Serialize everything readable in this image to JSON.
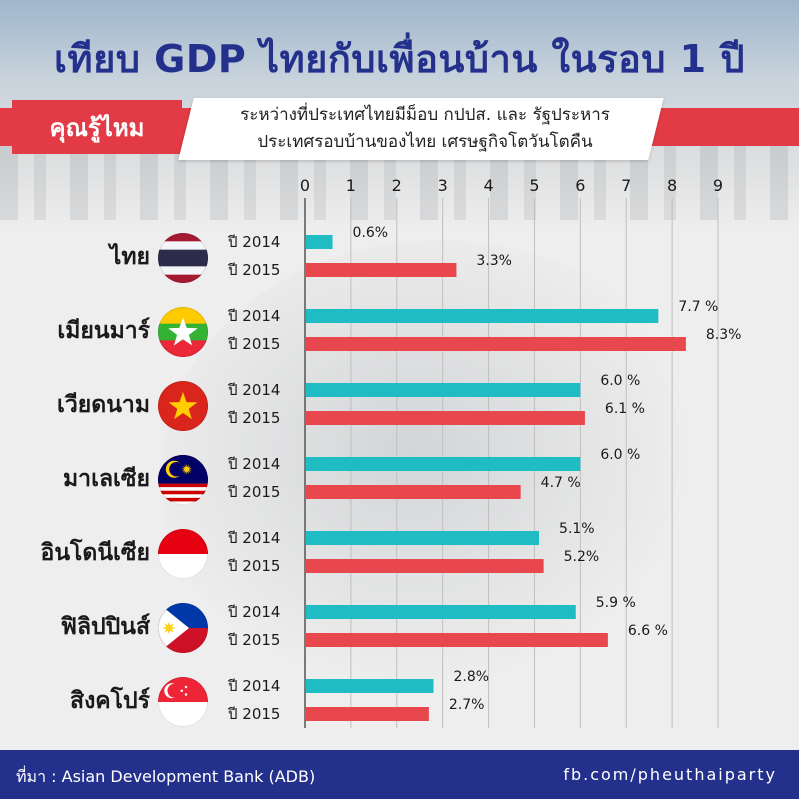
{
  "title": "เทียบ GDP ไทยกับเพื่อนบ้าน ในรอบ 1 ปี",
  "banner": {
    "label": "คุณรู้ไหม",
    "line1": "ระหว่างที่ประเทศไทยมีม็อบ กปปส. และ รัฐประหาร",
    "line2": "ประเทศรอบบ้านของไทย เศรษฐกิจโตวันโตคืน"
  },
  "footer": {
    "source": "ที่มา : Asian Development Bank (ADB)",
    "page": "fb.com/pheuthaiparty"
  },
  "colors": {
    "title": "#24318c",
    "banner_red": "#e23b46",
    "bar_2014": "#1fbcc4",
    "bar_2015": "#e8474e",
    "grid": "#bfbfbf",
    "footer_bg": "#24318c"
  },
  "chart_data": {
    "type": "bar",
    "orientation": "horizontal",
    "xlim": [
      0,
      9
    ],
    "ticks": [
      "0",
      "1",
      "2",
      "3",
      "4",
      "5",
      "6",
      "7",
      "8",
      "9"
    ],
    "grid": true,
    "categories": [
      {
        "name": "ไทย",
        "flag": "thailand-flag-icon",
        "y2014_label": "0.6%",
        "y2015_label": "3.3%"
      },
      {
        "name": "เมียนมาร์",
        "flag": "myanmar-flag-icon",
        "y2014_label": "7.7 %",
        "y2015_label": "8.3%"
      },
      {
        "name": "เวียดนาม",
        "flag": "vietnam-flag-icon",
        "y2014_label": "6.0 %",
        "y2015_label": "6.1 %"
      },
      {
        "name": "มาเลเซีย",
        "flag": "malaysia-flag-icon",
        "y2014_label": "6.0 %",
        "y2015_label": "4.7 %"
      },
      {
        "name": "อินโดนีเซีย",
        "flag": "indonesia-flag-icon",
        "y2014_label": "5.1%",
        "y2015_label": "5.2%"
      },
      {
        "name": "ฟิลิปปินส์",
        "flag": "philippines-flag-icon",
        "y2014_label": "5.9 %",
        "y2015_label": "6.6 %"
      },
      {
        "name": "สิงคโปร์",
        "flag": "singapore-flag-icon",
        "y2014_label": "2.8%",
        "y2015_label": "2.7%"
      }
    ],
    "series": [
      {
        "name": "ปี 2014",
        "values": [
          0.6,
          7.7,
          6.0,
          6.0,
          5.1,
          5.9,
          2.8
        ]
      },
      {
        "name": "ปี 2015",
        "values": [
          3.3,
          8.3,
          6.1,
          4.7,
          5.2,
          6.6,
          2.7
        ]
      }
    ]
  }
}
